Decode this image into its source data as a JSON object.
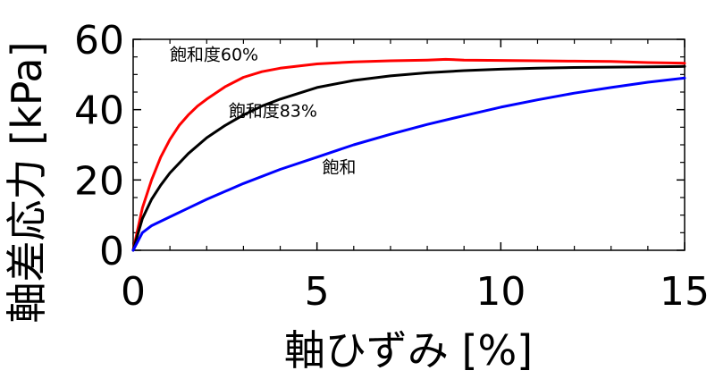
{
  "chart_data": {
    "type": "line",
    "xlabel": "軸ひずみ [%]",
    "ylabel": "軸差応力 [kPa]",
    "xlim": [
      0,
      15
    ],
    "ylim": [
      0,
      60
    ],
    "x_ticks": [
      "0",
      "5",
      "10",
      "15"
    ],
    "y_ticks": [
      "0",
      "20",
      "40",
      "60"
    ],
    "grid": false,
    "series": [
      {
        "name": "飽和度60%",
        "color": "#ff0000",
        "x": [
          0,
          0.25,
          0.5,
          0.75,
          1,
          1.25,
          1.5,
          1.75,
          2,
          2.5,
          3,
          3.5,
          4,
          5,
          6,
          7,
          8,
          8.5,
          9,
          10,
          11,
          12,
          13,
          14,
          15
        ],
        "y": [
          0,
          12,
          20,
          26.5,
          31.5,
          35.5,
          38.5,
          41,
          43,
          46.5,
          49.2,
          50.8,
          51.8,
          53,
          53.6,
          53.9,
          54.1,
          54.3,
          54.1,
          54,
          53.9,
          53.8,
          53.7,
          53.4,
          53.2
        ]
      },
      {
        "name": "飽和度83%",
        "color": "#000000",
        "x": [
          0,
          0.25,
          0.5,
          0.75,
          1,
          1.5,
          2,
          2.5,
          3,
          3.5,
          4,
          5,
          6,
          7,
          8,
          9,
          10,
          11,
          12,
          13,
          14,
          15
        ],
        "y": [
          0,
          9,
          14.5,
          18.5,
          22,
          27.5,
          32,
          35.5,
          38.5,
          41,
          43,
          46.3,
          48.3,
          49.6,
          50.5,
          51.1,
          51.5,
          51.8,
          52,
          52.1,
          52.2,
          52.3
        ]
      },
      {
        "name": "飽和",
        "color": "#0000ff",
        "x": [
          0,
          0.25,
          0.5,
          1,
          1.5,
          2,
          3,
          4,
          5,
          6,
          7,
          8,
          9,
          10,
          11,
          12,
          13,
          14,
          15
        ],
        "y": [
          0,
          5,
          7,
          9.5,
          12,
          14.5,
          19,
          23,
          26.5,
          30,
          33,
          35.8,
          38.3,
          40.7,
          42.8,
          44.7,
          46.3,
          47.8,
          49
        ]
      }
    ],
    "annotations": [
      {
        "text": "飽和度60%",
        "x": 2.2,
        "y": 54
      },
      {
        "text": "飽和度83%",
        "x": 3.8,
        "y": 38
      },
      {
        "text": "飽和",
        "x": 5.6,
        "y": 22
      }
    ]
  }
}
